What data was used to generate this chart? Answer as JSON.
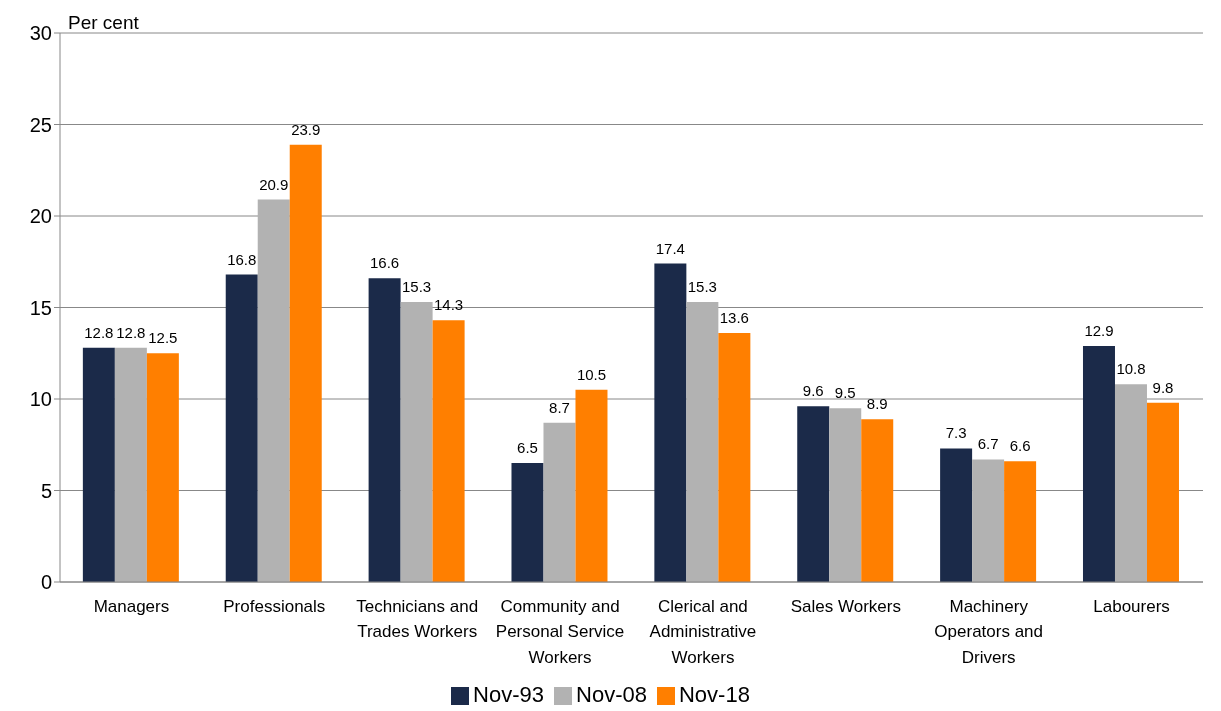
{
  "chart_data": {
    "type": "bar",
    "ylabel": "Per cent",
    "categories": [
      "Managers",
      "Professionals",
      "Technicians and Trades Workers",
      "Community and Personal Service Workers",
      "Clerical and Administrative Workers",
      "Sales Workers",
      "Machinery Operators and Drivers",
      "Labourers"
    ],
    "series": [
      {
        "name": "Nov-93",
        "color": "#1b2a49",
        "values": [
          12.8,
          16.8,
          16.6,
          6.5,
          17.4,
          9.6,
          7.3,
          12.9
        ]
      },
      {
        "name": "Nov-08",
        "color": "#b2b2b2",
        "values": [
          12.8,
          20.9,
          15.3,
          8.7,
          15.3,
          9.5,
          6.7,
          10.8
        ]
      },
      {
        "name": "Nov-18",
        "color": "#ff7f00",
        "values": [
          12.5,
          23.9,
          14.3,
          10.5,
          13.6,
          8.9,
          6.6,
          9.8
        ]
      }
    ],
    "ylim": [
      0,
      30
    ],
    "yticks": [
      0,
      5,
      10,
      15,
      20,
      25,
      30
    ],
    "grid": "y",
    "legend": "bottom",
    "data_labels": true
  }
}
